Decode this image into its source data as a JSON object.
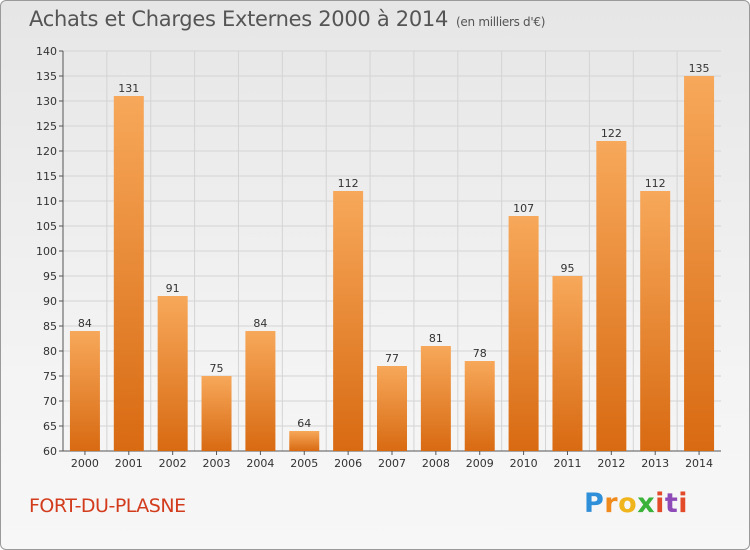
{
  "header": {
    "title": "Achats et Charges Externes 2000 à 2014",
    "subtitle": "(en milliers d'€)"
  },
  "footer": {
    "city": "FORT-DU-PLASNE",
    "logo": {
      "p": "P",
      "r": "r",
      "o": "o",
      "x": "x",
      "i": "i",
      "t": "t",
      "i2": "i"
    }
  },
  "colors": {
    "bar_top": "#f7a85a",
    "bar_bottom": "#d86a12",
    "grid": "#d4d4d4",
    "axis": "#555555"
  },
  "chart_data": {
    "type": "bar",
    "categories": [
      "2000",
      "2001",
      "2002",
      "2003",
      "2004",
      "2005",
      "2006",
      "2007",
      "2008",
      "2009",
      "2010",
      "2011",
      "2012",
      "2013",
      "2014"
    ],
    "values": [
      84,
      131,
      91,
      75,
      84,
      64,
      112,
      77,
      81,
      78,
      107,
      95,
      122,
      112,
      135
    ],
    "ylim": [
      60,
      140
    ],
    "yticks": [
      60,
      65,
      70,
      75,
      80,
      85,
      90,
      95,
      100,
      105,
      110,
      115,
      120,
      125,
      130,
      135,
      140
    ],
    "grid": true
  }
}
